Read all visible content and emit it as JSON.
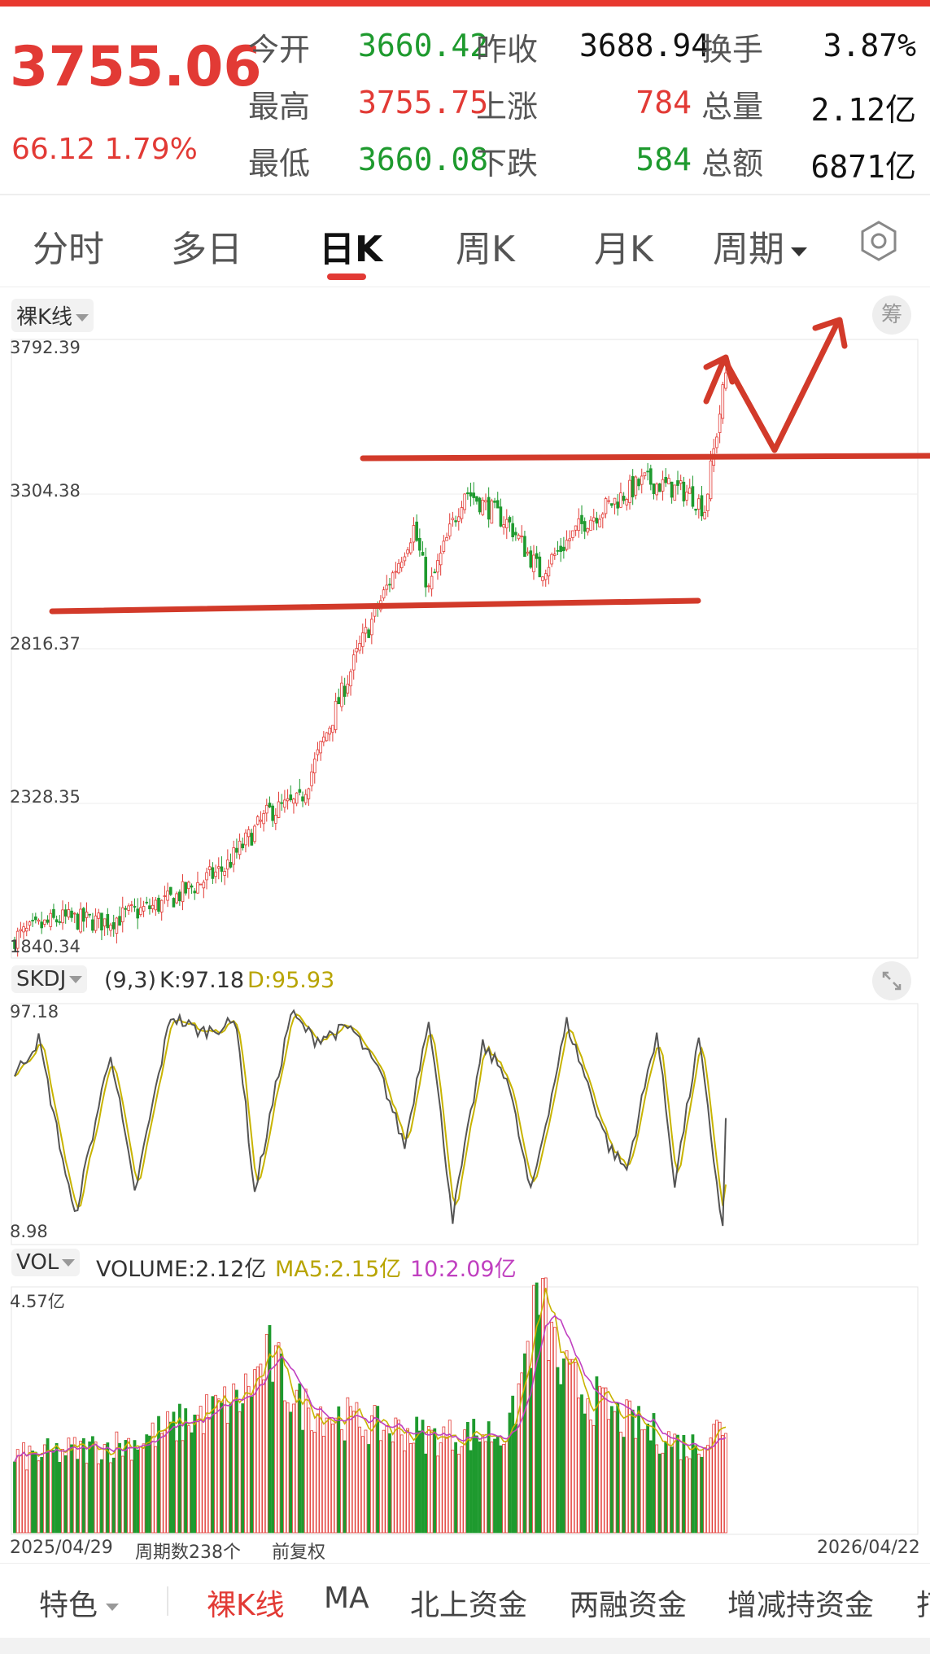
{
  "quote": {
    "price": "3755.06",
    "change": "66.12 1.79%",
    "rows": [
      [
        {
          "label": "今开",
          "value": "3660.42",
          "color": "green"
        },
        {
          "label": "昨收",
          "value": "3688.94",
          "color": "black"
        },
        {
          "label": "换手",
          "value": "3.87%",
          "color": "black"
        }
      ],
      [
        {
          "label": "最高",
          "value": "3755.75",
          "color": "red"
        },
        {
          "label": "上涨",
          "value": "784",
          "color": "red"
        },
        {
          "label": "总量",
          "value": "2.12亿",
          "color": "black"
        }
      ],
      [
        {
          "label": "最低",
          "value": "3660.08",
          "color": "green"
        },
        {
          "label": "下跌",
          "value": "584",
          "color": "green"
        },
        {
          "label": "总额",
          "value": "6871亿",
          "color": "black"
        }
      ]
    ]
  },
  "tabs": [
    "分时",
    "多日",
    "日K",
    "周K",
    "月K",
    "周期"
  ],
  "active_tab": "日K",
  "kline": {
    "selector": "裸K线",
    "chip_button": "筹",
    "y_ticks": [
      "3792.39",
      "3304.38",
      "2816.37",
      "2328.35",
      "1840.34"
    ]
  },
  "skdj": {
    "selector": "SKDJ",
    "params": "(9,3)",
    "k_label": "K:97.18",
    "d_label": "D:95.93",
    "y_ticks": [
      "97.18",
      "8.98"
    ]
  },
  "vol": {
    "selector": "VOL",
    "volume_label": "VOLUME:2.12亿",
    "ma5_label": "MA5:2.15亿",
    "ma10_label": "10:2.09亿",
    "y_tick": "4.57亿"
  },
  "footer": {
    "start_date": "2025/04/29",
    "period_count": "周期数238个",
    "adjust": "前复权",
    "end_date": "2026/04/22"
  },
  "bottom_bar": [
    "特色",
    "裸K线",
    "MA",
    "北上资金",
    "两融资金",
    "增减持资金",
    "打"
  ],
  "bottom_active": "裸K线",
  "colors": {
    "up": "#e23a35",
    "down": "#1e9a2e",
    "k_line": "#555555",
    "d_line": "#c8b400",
    "ma10": "#c040c0",
    "annotation": "#d23a2a"
  },
  "icons": [
    "hexagon-settings-icon",
    "dropdown-arrow-icon",
    "expand-icon"
  ]
}
